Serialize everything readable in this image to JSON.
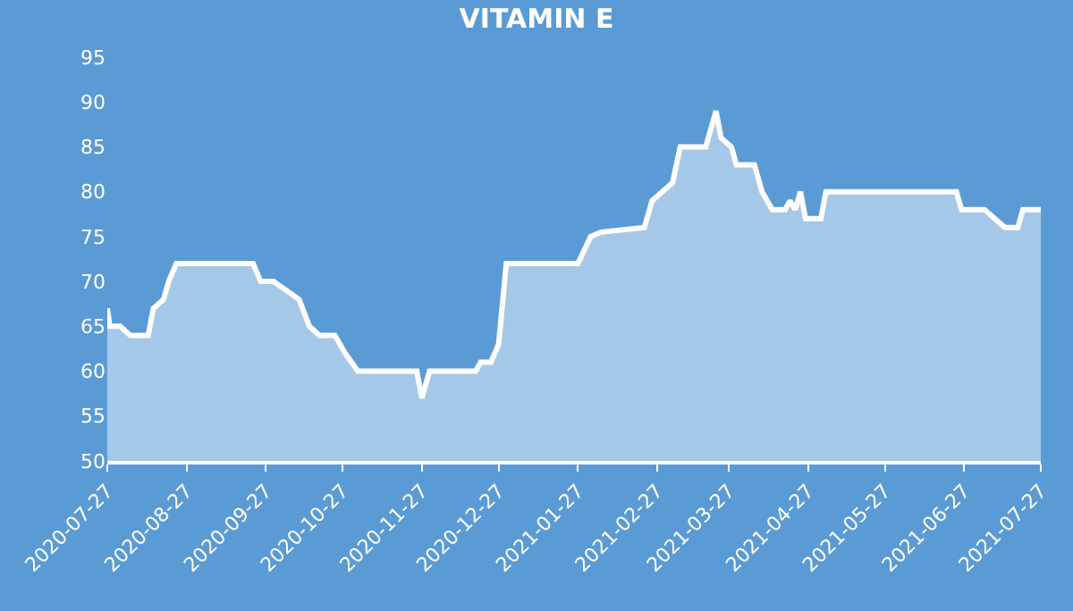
{
  "chart_data": {
    "type": "area",
    "title": "VITAMIN E",
    "color": "#ffffff",
    "x": [
      "2020-07-27",
      "2020-07-28",
      "2020-08-01",
      "2020-08-05",
      "2020-08-12",
      "2020-08-14",
      "2020-08-18",
      "2020-08-20",
      "2020-08-23",
      "2020-09-22",
      "2020-09-25",
      "2020-09-30",
      "2020-10-05",
      "2020-10-10",
      "2020-10-14",
      "2020-10-18",
      "2020-10-24",
      "2020-10-28",
      "2020-11-02",
      "2020-11-25",
      "2020-11-27",
      "2020-11-30",
      "2020-12-18",
      "2020-12-20",
      "2020-12-24",
      "2020-12-27",
      "2020-12-30",
      "2021-01-27",
      "2021-02-01",
      "2021-02-05",
      "2021-02-22",
      "2021-02-25",
      "2021-03-01",
      "2021-03-05",
      "2021-03-08",
      "2021-03-18",
      "2021-03-22",
      "2021-03-24",
      "2021-03-28",
      "2021-03-30",
      "2021-04-06",
      "2021-04-09",
      "2021-04-13",
      "2021-04-18",
      "2021-04-20",
      "2021-04-22",
      "2021-04-24",
      "2021-04-26",
      "2021-05-02",
      "2021-05-04",
      "2021-06-24",
      "2021-06-26",
      "2021-07-05",
      "2021-07-09",
      "2021-07-13",
      "2021-07-18",
      "2021-07-20",
      "2021-07-27"
    ],
    "values": [
      67,
      65,
      65,
      64,
      64,
      67,
      68,
      70,
      72,
      72,
      70,
      70,
      69,
      68,
      65,
      64,
      64,
      62,
      60,
      60,
      57,
      60,
      60,
      61,
      61,
      63,
      72,
      72,
      75,
      75.5,
      76,
      79,
      80,
      81,
      85,
      85,
      89,
      86,
      85,
      83,
      83,
      80,
      78,
      78,
      79,
      78,
      80,
      77,
      77,
      80,
      80,
      78,
      78,
      77,
      76,
      76,
      78,
      78
    ],
    "xlim": [
      "2020-07-27",
      "2021-07-27"
    ],
    "xticks": [
      "2020-07-27",
      "2020-08-27",
      "2020-09-27",
      "2020-10-27",
      "2020-11-27",
      "2020-12-27",
      "2021-01-27",
      "2021-02-27",
      "2021-03-27",
      "2021-04-27",
      "2021-05-27",
      "2021-06-27",
      "2021-07-27"
    ],
    "ylim": [
      50,
      95
    ],
    "yticks": [
      50,
      55,
      60,
      65,
      70,
      75,
      80,
      85,
      90,
      95
    ],
    "grid": false,
    "legend": false
  }
}
